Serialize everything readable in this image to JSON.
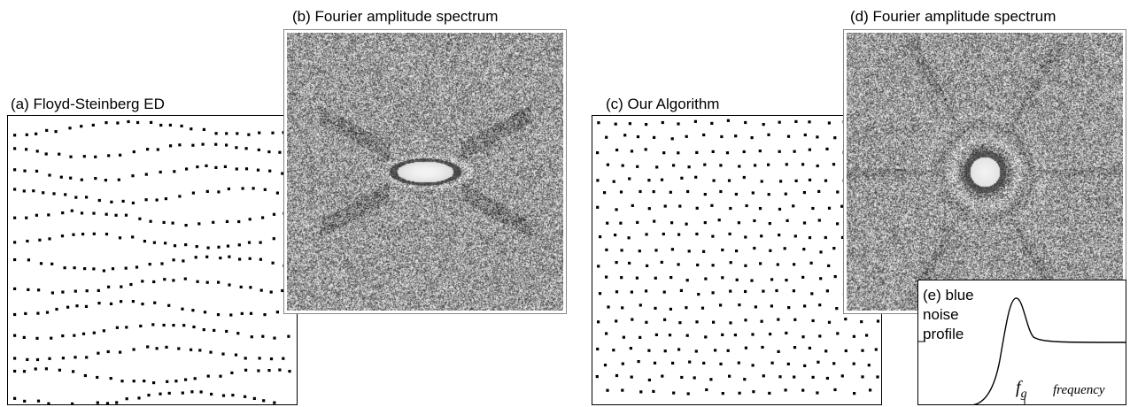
{
  "panels": {
    "a": {
      "caption": "(a) Floyd-Steinberg ED"
    },
    "b": {
      "caption": "(b) Fourier amplitude spectrum"
    },
    "c": {
      "caption": "(c) Our Algorithm"
    },
    "d": {
      "caption": "(d) Fourier amplitude spectrum"
    },
    "e": {
      "caption_line1": "(e) blue",
      "caption_line2": "noise",
      "caption_line3": "profile",
      "fg_symbol": "f",
      "fg_subscript": "g",
      "xlabel": "frequency"
    }
  },
  "colors": {
    "ink": "#000000",
    "spectrum_noise_mid": "#9a9a9a",
    "spectrum_center": "#f4f4f4"
  }
}
